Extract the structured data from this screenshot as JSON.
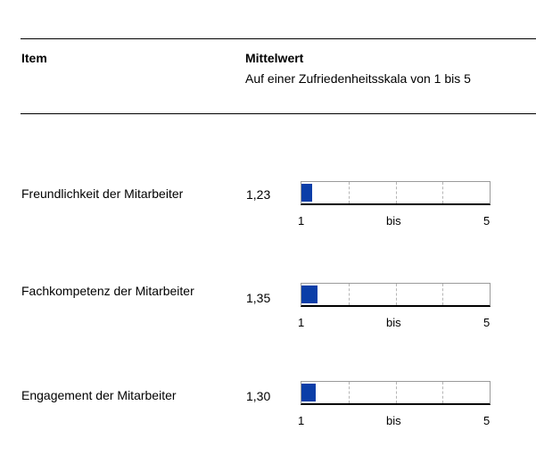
{
  "header": {
    "item_label": "Item",
    "mean_label": "Mittelwert",
    "mean_sub": "Auf einer Zufriedenheitsskala von 1 bis 5"
  },
  "scale": {
    "min_label": "1",
    "mid_label": "bis",
    "max_label": "5"
  },
  "colors": {
    "bar": "#0b3ea8"
  },
  "chart_data": {
    "type": "bar",
    "orientation": "horizontal",
    "categories": [
      "Freundlichkeit der Mitarbeiter",
      "Fachkompetenz der Mitarbeiter",
      "Engagement der Mitarbeiter"
    ],
    "values": [
      1.23,
      1.35,
      1.3
    ],
    "value_labels": [
      "1,23",
      "1,35",
      "1,30"
    ],
    "xlim": [
      1,
      5
    ],
    "grid": true
  }
}
